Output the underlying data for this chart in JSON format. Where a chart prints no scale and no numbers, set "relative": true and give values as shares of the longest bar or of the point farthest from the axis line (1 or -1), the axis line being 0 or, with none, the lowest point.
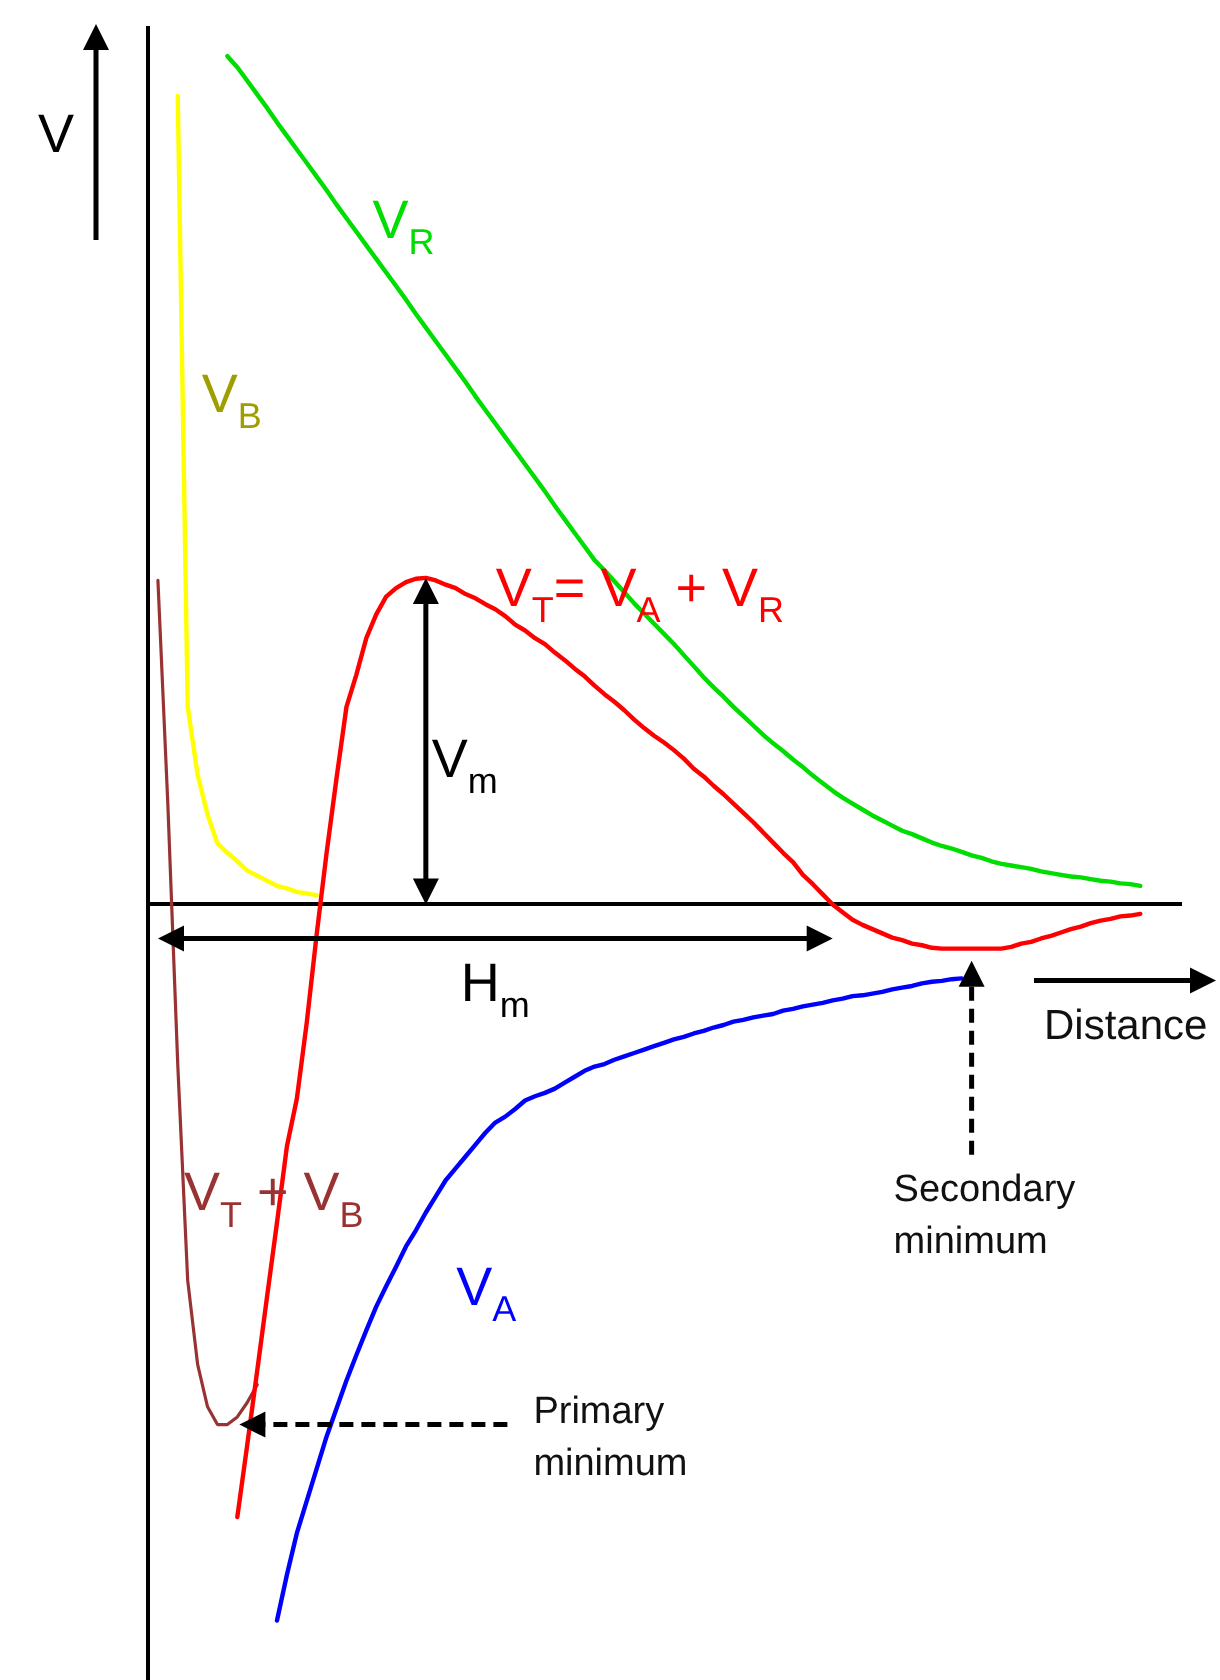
{
  "chart_data": {
    "type": "line",
    "relative": true,
    "xlabel": "Distance",
    "ylabel": "V",
    "categories": [
      null,
      null,
      null,
      null,
      null,
      null,
      null,
      null,
      null,
      null,
      null,
      null,
      null,
      null,
      null,
      null,
      null,
      null,
      null,
      null,
      null,
      null,
      null,
      null,
      null,
      null,
      null,
      null,
      null,
      null,
      null,
      null,
      null,
      null,
      null,
      null,
      null,
      null,
      null,
      null,
      null,
      null,
      null,
      null,
      null,
      null,
      null,
      null,
      null,
      null,
      null,
      null,
      null,
      null,
      null,
      null,
      null,
      null,
      null,
      null,
      null,
      null,
      null,
      null,
      null,
      null,
      null,
      null,
      null,
      null,
      null,
      null,
      null,
      null,
      null,
      null,
      null,
      null,
      null,
      null,
      null,
      null,
      null,
      null,
      null,
      null,
      null,
      null,
      null,
      null,
      null,
      null,
      null,
      null,
      null,
      null,
      null,
      null,
      null,
      null,
      null,
      null,
      null,
      null,
      null
    ],
    "series": [
      {
        "name": "V$_{R}$",
        "color": "#00dd00",
        "values": [
          null,
          null,
          null,
          null,
          null,
          null,
          null,
          null,
          1.0,
          0.987,
          0.971,
          0.955,
          0.939,
          0.922,
          0.906,
          0.89,
          0.874,
          0.858,
          0.842,
          0.825,
          0.809,
          0.793,
          0.777,
          0.761,
          0.745,
          0.729,
          0.713,
          0.696,
          0.68,
          0.664,
          0.648,
          0.632,
          0.616,
          0.599,
          0.583,
          0.567,
          0.551,
          0.535,
          0.519,
          0.503,
          0.487,
          0.47,
          0.454,
          0.438,
          0.422,
          0.406,
          0.394,
          0.381,
          0.368,
          0.355,
          0.343,
          0.331,
          0.319,
          0.307,
          0.294,
          0.281,
          0.268,
          0.256,
          0.245,
          0.233,
          0.222,
          0.211,
          0.2,
          0.19,
          0.181,
          0.171,
          0.162,
          0.152,
          0.143,
          0.134,
          0.126,
          0.119,
          0.112,
          0.105,
          0.099,
          0.093,
          0.087,
          0.083,
          0.078,
          0.073,
          0.069,
          0.066,
          0.062,
          0.058,
          0.055,
          0.051,
          0.048,
          0.046,
          0.044,
          0.042,
          0.039,
          0.037,
          0.035,
          0.033,
          0.032,
          0.03,
          0.028,
          0.027,
          0.025,
          0.024,
          0.022,
          null,
          null,
          null,
          null
        ]
      },
      {
        "name": "V$_{B}$",
        "color": "#ffff00",
        "values": [
          null,
          null,
          null,
          0.953,
          0.233,
          0.153,
          0.106,
          0.072,
          0.061,
          0.051,
          0.04,
          0.034,
          0.028,
          0.022,
          0.019,
          0.015,
          0.013,
          0.011,
          null,
          null,
          null,
          null,
          null,
          null,
          null,
          null,
          null,
          null,
          null,
          null,
          null,
          null,
          null,
          null,
          null,
          null,
          null,
          null,
          null,
          null,
          null,
          null,
          null,
          null,
          null,
          null,
          null,
          null,
          null,
          null,
          null,
          null,
          null,
          null,
          null,
          null,
          null,
          null,
          null,
          null,
          null,
          null,
          null,
          null,
          null,
          null,
          null,
          null,
          null,
          null,
          null,
          null,
          null,
          null,
          null,
          null,
          null,
          null,
          null,
          null,
          null,
          null,
          null,
          null,
          null,
          null,
          null,
          null,
          null,
          null,
          null,
          null,
          null,
          null,
          null,
          null,
          null,
          null,
          null,
          null,
          null,
          null,
          null,
          null,
          null
        ]
      },
      {
        "name": "V$_{T}$= V$_{A}$ + V$_{R}$",
        "color": "#ff0000",
        "values": [
          null,
          null,
          null,
          null,
          null,
          null,
          null,
          null,
          null,
          -0.722,
          -0.637,
          -0.55,
          -0.462,
          -0.375,
          -0.285,
          -0.229,
          -0.139,
          -0.035,
          0.061,
          0.149,
          0.233,
          0.271,
          0.314,
          0.342,
          0.363,
          0.373,
          0.38,
          0.384,
          0.385,
          0.382,
          0.377,
          0.373,
          0.366,
          0.361,
          0.354,
          0.348,
          0.34,
          0.33,
          0.323,
          0.314,
          0.307,
          0.297,
          0.288,
          0.278,
          0.269,
          0.258,
          0.248,
          0.239,
          0.229,
          0.218,
          0.208,
          0.199,
          0.191,
          0.182,
          0.172,
          0.16,
          0.151,
          0.14,
          0.13,
          0.119,
          0.108,
          0.097,
          0.085,
          0.073,
          0.061,
          0.05,
          0.035,
          0.024,
          0.012,
          0.0,
          -0.009,
          -0.018,
          -0.024,
          -0.029,
          -0.034,
          -0.039,
          -0.042,
          -0.046,
          -0.048,
          -0.051,
          -0.052,
          -0.052,
          -0.052,
          -0.052,
          -0.052,
          -0.052,
          -0.052,
          -0.05,
          -0.046,
          -0.044,
          -0.04,
          -0.037,
          -0.033,
          -0.029,
          -0.026,
          -0.022,
          -0.019,
          -0.017,
          -0.014,
          -0.013,
          -0.011,
          null,
          null,
          null,
          null
        ]
      },
      {
        "name": "V$_{T}$ + V$_{B}$",
        "color": "#993333",
        "values": [
          null,
          0.382,
          0.118,
          -0.189,
          -0.443,
          -0.542,
          -0.592,
          -0.613,
          -0.613,
          -0.604,
          -0.587,
          -0.566,
          null,
          null,
          null,
          null,
          null,
          null,
          null,
          null,
          null,
          null,
          null,
          null,
          null,
          null,
          null,
          null,
          null,
          null,
          null,
          null,
          null,
          null,
          null,
          null,
          null,
          null,
          null,
          null,
          null,
          null,
          null,
          null,
          null,
          null,
          null,
          null,
          null,
          null,
          null,
          null,
          null,
          null,
          null,
          null,
          null,
          null,
          null,
          null,
          null,
          null,
          null,
          null,
          null,
          null,
          null,
          null,
          null,
          null,
          null,
          null,
          null,
          null,
          null,
          null,
          null,
          null,
          null,
          null,
          null,
          null,
          null,
          null,
          null,
          null,
          null,
          null,
          null,
          null,
          null,
          null,
          null,
          null,
          null,
          null,
          null,
          null,
          null,
          null,
          null,
          null,
          null,
          null,
          null
        ]
      },
      {
        "name": "V$_{A}$",
        "color": "#0000ff",
        "values": [
          null,
          null,
          null,
          null,
          null,
          null,
          null,
          null,
          null,
          null,
          null,
          null,
          null,
          -0.844,
          -0.79,
          -0.741,
          -0.703,
          -0.665,
          -0.627,
          -0.594,
          -0.561,
          -0.531,
          -0.502,
          -0.474,
          -0.45,
          -0.427,
          -0.403,
          -0.384,
          -0.363,
          -0.344,
          -0.325,
          -0.311,
          -0.297,
          -0.283,
          -0.269,
          -0.257,
          -0.25,
          -0.241,
          -0.231,
          -0.226,
          -0.222,
          -0.217,
          -0.21,
          -0.203,
          -0.196,
          -0.191,
          -0.188,
          -0.183,
          -0.179,
          -0.175,
          -0.171,
          -0.167,
          -0.163,
          -0.159,
          -0.156,
          -0.152,
          -0.149,
          -0.145,
          -0.142,
          -0.138,
          -0.136,
          -0.133,
          -0.131,
          -0.129,
          -0.125,
          -0.123,
          -0.12,
          -0.118,
          -0.116,
          -0.113,
          -0.111,
          -0.108,
          -0.107,
          -0.105,
          -0.103,
          -0.1,
          -0.098,
          -0.096,
          -0.093,
          -0.091,
          -0.09,
          -0.088,
          -0.087,
          null,
          null,
          null,
          null,
          null,
          null,
          null,
          null,
          null,
          null,
          null,
          null,
          null,
          null,
          null,
          null,
          null,
          null,
          null,
          null,
          null,
          null
        ]
      }
    ],
    "annotations": [
      "V$_{m}$",
      "H$_{m}$",
      "Primary minimum",
      "Secondary minimum"
    ]
  }
}
